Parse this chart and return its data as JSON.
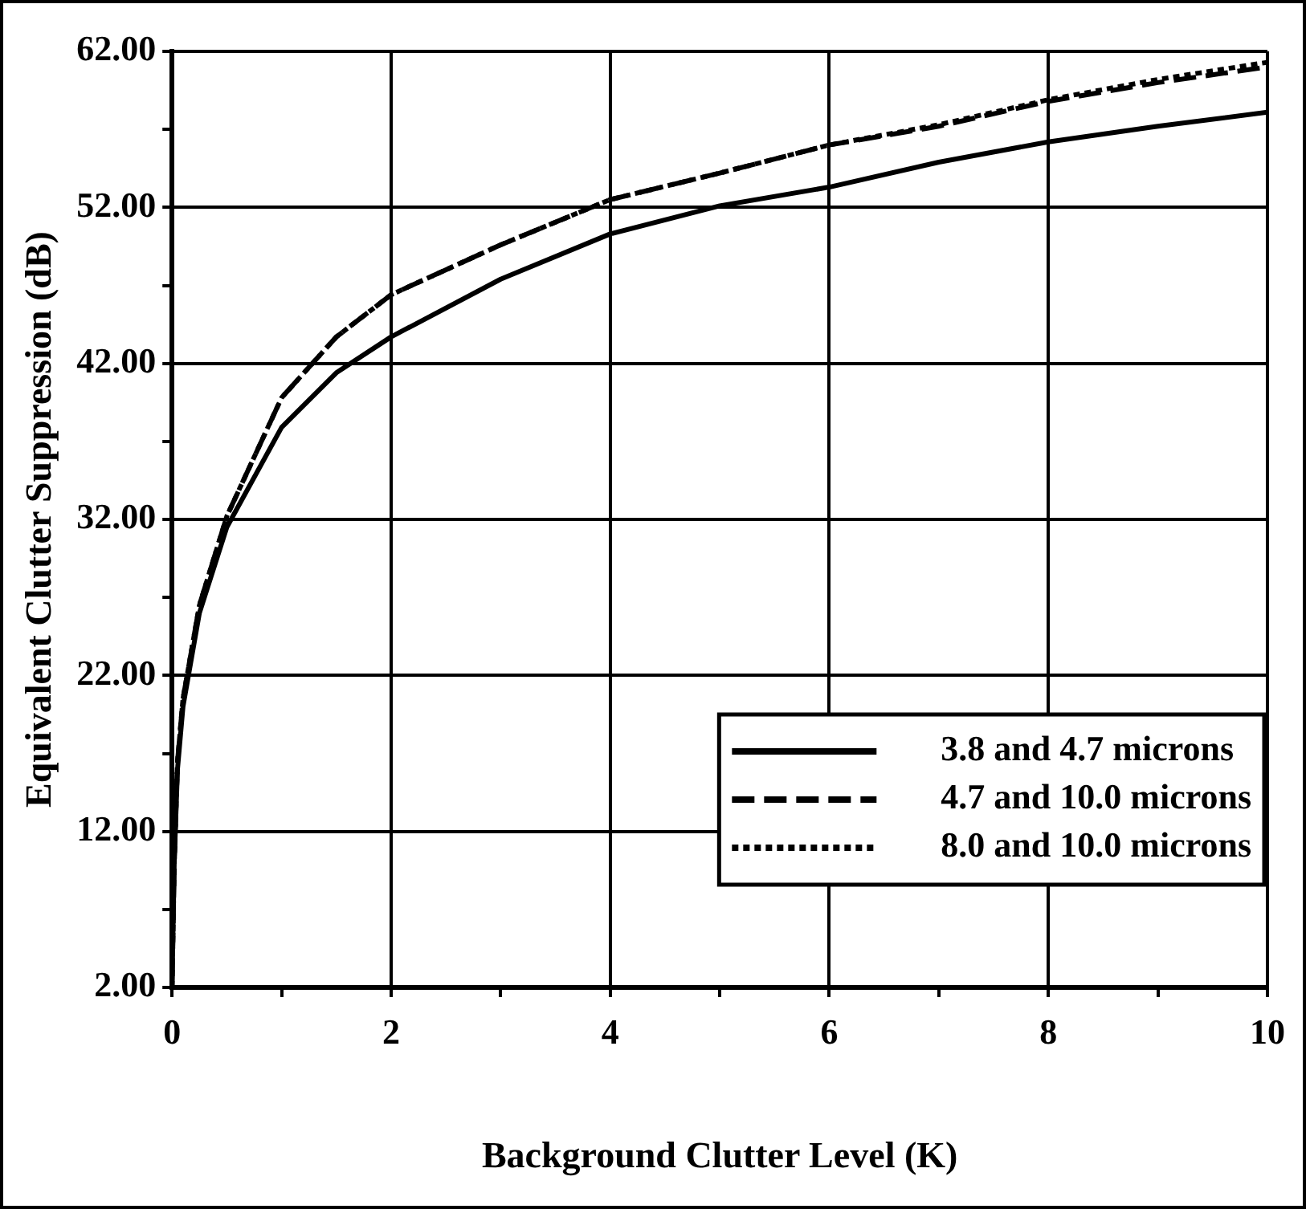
{
  "chart_data": {
    "type": "line",
    "xlabel": "Background Clutter Level (K)",
    "ylabel": "Equivalent Clutter Suppression (dB)",
    "x": [
      0,
      0.02,
      0.05,
      0.1,
      0.25,
      0.5,
      1,
      1.5,
      2,
      3,
      4,
      5,
      6,
      7,
      8,
      9,
      10
    ],
    "series": [
      {
        "name": "3.8 and 4.7 microns",
        "color": "#000000",
        "line_style": "solid",
        "values": [
          2,
          10,
          16,
          20,
          26,
          31.5,
          37.9,
          41.4,
          43.7,
          47.4,
          50.3,
          52.1,
          53.3,
          54.9,
          56.2,
          57.2,
          58.1
        ]
      },
      {
        "name": "4.7 and 10.0 microns",
        "color": "#000000",
        "line_style": "dashed",
        "values": [
          2,
          10,
          16.5,
          20.5,
          26.5,
          32.2,
          39.8,
          43.7,
          46.4,
          49.6,
          52.5,
          54.2,
          56,
          57.2,
          58.8,
          60,
          61
        ]
      },
      {
        "name": "8.0 and 10.0 microns",
        "color": "#000000",
        "line_style": "dotted",
        "values": [
          2,
          10,
          16.5,
          20.5,
          26.5,
          32.2,
          39.8,
          43.7,
          46.4,
          49.6,
          52.5,
          54.2,
          56,
          57.3,
          58.9,
          60.2,
          61.3
        ]
      }
    ],
    "xlim": [
      0,
      10
    ],
    "xticks": [
      0,
      {
        "value": 1,
        "label": null
      },
      2,
      {
        "value": 3,
        "label": null
      },
      4,
      {
        "value": 5,
        "label": null
      },
      6,
      {
        "value": 7,
        "label": null
      },
      8,
      {
        "value": 9,
        "label": null
      },
      10
    ],
    "ylim": [
      2,
      62
    ],
    "yticks": [
      {
        "value": 2,
        "label": "2.00"
      },
      {
        "value": 7,
        "label": null
      },
      {
        "value": 12,
        "label": "12.00"
      },
      {
        "value": 17,
        "label": null
      },
      {
        "value": 22,
        "label": "22.00"
      },
      {
        "value": 27,
        "label": null
      },
      {
        "value": 32,
        "label": "32.00"
      },
      {
        "value": 37,
        "label": null
      },
      {
        "value": 42,
        "label": "42.00"
      },
      {
        "value": 47,
        "label": null
      },
      {
        "value": 52,
        "label": "52.00"
      },
      {
        "value": 57,
        "label": null
      },
      {
        "value": 62,
        "label": "62.00"
      }
    ],
    "grid": true,
    "legend": "bottom right"
  }
}
